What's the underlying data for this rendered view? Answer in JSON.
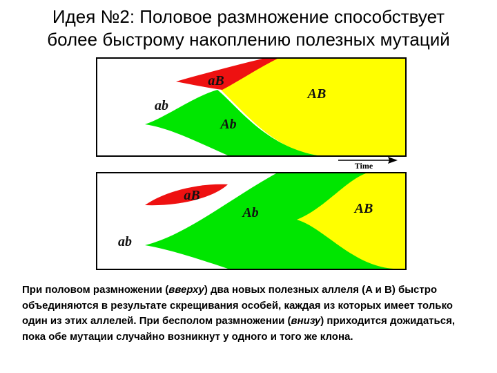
{
  "title": [
    "Идея №2: Половое размножение способствует",
    "более быстрому накоплению полезных мутаций"
  ],
  "top_panel": {
    "labels": {
      "aB": "aB",
      "ab": "ab",
      "AB": "AB",
      "Ab": "Ab"
    },
    "axis_label": "Time"
  },
  "bottom_panel": {
    "labels": {
      "aB": "aB",
      "Ab": "Ab",
      "AB": "AB",
      "ab": "ab"
    }
  },
  "caption": [
    "При половом размножении (",
    "вверху",
    ") два новых полезных аллеля (A и B) быстро объединяются в результате скрещивания особей, каждая из которых имеет только один из этих аллелей. При бесполом размножении (",
    "внизу",
    ") приходится дожидаться, пока обе мутации случайно возникнут у одного и того же клона."
  ]
}
